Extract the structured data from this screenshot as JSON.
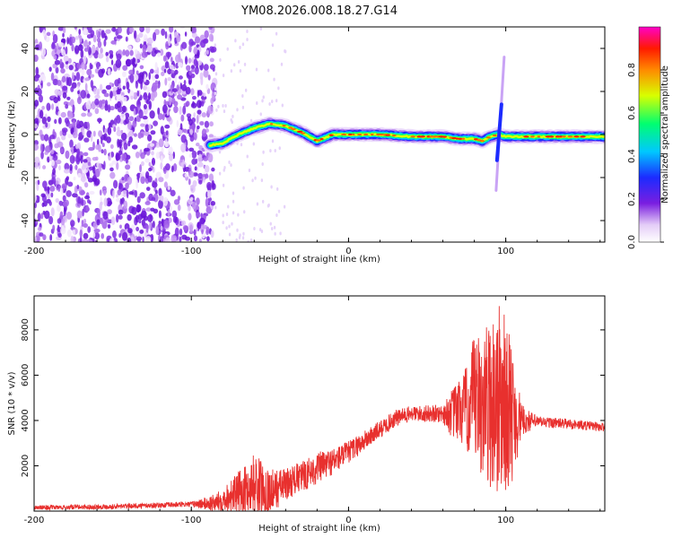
{
  "title": "YM08.2026.008.18.27.G14",
  "chart_data": [
    {
      "type": "heatmap",
      "name": "spectrogram",
      "xlabel": "Height of straight line (km)",
      "ylabel": "Frequency (Hz)",
      "xlim": [
        -200,
        163
      ],
      "ylim": [
        -50,
        50
      ],
      "x_ticks": [
        -200,
        -100,
        0,
        100
      ],
      "y_ticks": [
        -40,
        -20,
        0,
        20,
        40
      ],
      "colorbar": {
        "label": "Normalized spectral amplitude",
        "range": [
          0,
          1
        ],
        "ticks": [
          0.0,
          0.2,
          0.4,
          0.6,
          0.8
        ]
      },
      "noise_region_x": [
        -200,
        -85
      ],
      "signal_trace": {
        "x": [
          -88,
          -80,
          -70,
          -60,
          -50,
          -40,
          -30,
          -20,
          -10,
          0,
          20,
          40,
          60,
          70,
          80,
          85,
          90,
          95,
          100,
          120,
          140,
          163
        ],
        "freq": [
          -5,
          -4,
          0,
          3,
          5,
          4,
          1,
          -3,
          0,
          0,
          0,
          -1,
          -1,
          -2,
          -2,
          -3,
          -1,
          0,
          -1,
          -1,
          -1,
          -1
        ]
      }
    },
    {
      "type": "line",
      "name": "snr",
      "xlabel": "Height of straight line (km)",
      "ylabel": "SNR (10 * v/v)",
      "xlim": [
        -200,
        163
      ],
      "ylim": [
        0,
        9500
      ],
      "x_ticks": [
        -200,
        -100,
        0,
        100
      ],
      "y_ticks": [
        2000,
        4000,
        6000,
        8000
      ],
      "color": "#e8302e",
      "envelope": {
        "x": [
          -200,
          -150,
          -100,
          -85,
          -75,
          -65,
          -60,
          -50,
          -40,
          -30,
          -20,
          -10,
          0,
          10,
          20,
          30,
          40,
          50,
          60,
          65,
          70,
          75,
          80,
          85,
          90,
          95,
          100,
          105,
          110,
          120,
          140,
          163
        ],
        "y": [
          150,
          200,
          300,
          350,
          700,
          900,
          1200,
          800,
          1200,
          1500,
          1900,
          2200,
          2600,
          3100,
          3600,
          4100,
          4300,
          4300,
          4300,
          4300,
          4400,
          4500,
          4600,
          4700,
          4800,
          4900,
          4700,
          4200,
          4000,
          3950,
          3850,
          3700
        ]
      },
      "variability": {
        "x": [
          -200,
          -100,
          -80,
          -60,
          -40,
          -20,
          0,
          20,
          40,
          60,
          65,
          75,
          80,
          85,
          90,
          95,
          100,
          105,
          110,
          120,
          163
        ],
        "amp": [
          100,
          120,
          500,
          1400,
          700,
          700,
          500,
          400,
          350,
          400,
          1000,
          1900,
          3200,
          3200,
          3800,
          4600,
          3900,
          2800,
          700,
          250,
          200
        ]
      }
    }
  ]
}
